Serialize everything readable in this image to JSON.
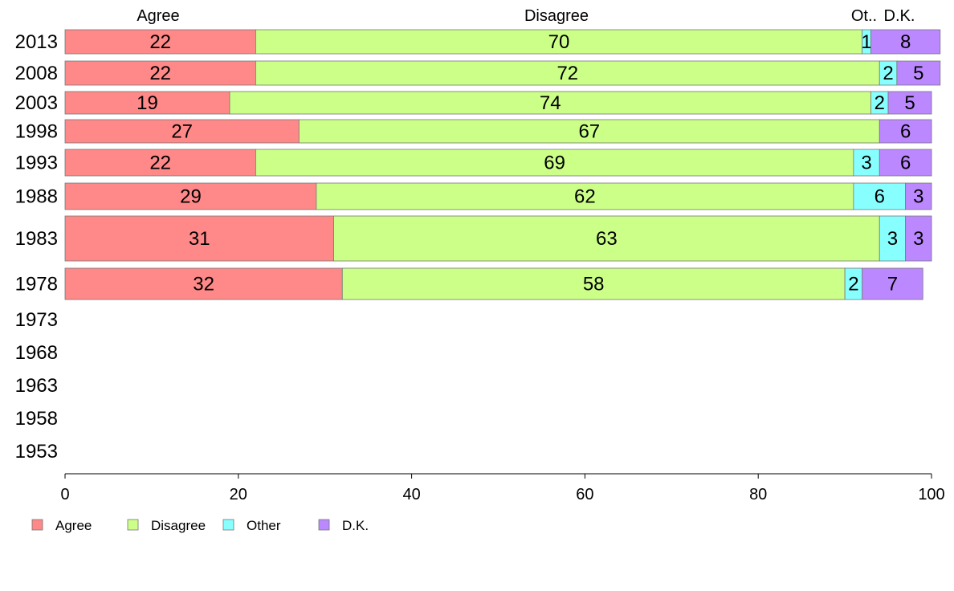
{
  "chart_data": {
    "type": "bar",
    "orientation": "horizontal",
    "stacked": true,
    "categories": [
      "2013",
      "2008",
      "2003",
      "1998",
      "1993",
      "1988",
      "1983",
      "1978",
      "1973",
      "1968",
      "1963",
      "1958",
      "1953"
    ],
    "series": [
      {
        "name": "Agree",
        "color": "#FF8888",
        "values": [
          22,
          22,
          19,
          27,
          22,
          29,
          31,
          32,
          null,
          null,
          null,
          null,
          null
        ],
        "labels": [
          "22",
          "22",
          "19",
          "27",
          "22",
          "29",
          "31",
          "32",
          "",
          "",
          "",
          "",
          ""
        ]
      },
      {
        "name": "Disagree",
        "color": "#CCFF88",
        "values": [
          70,
          72,
          74,
          67,
          69,
          62,
          63,
          58,
          null,
          null,
          null,
          null,
          null
        ],
        "labels": [
          "70",
          "72",
          "74",
          "67",
          "69",
          "62",
          "63",
          "58",
          "",
          "",
          "",
          "",
          ""
        ]
      },
      {
        "name": "Other",
        "color": "#88FFFF",
        "values": [
          1,
          2,
          2,
          0,
          3,
          6,
          3,
          2,
          null,
          null,
          null,
          null,
          null
        ],
        "labels": [
          "1",
          "2",
          "2",
          "",
          "3",
          "6",
          "3",
          "2",
          "",
          "",
          "",
          "",
          ""
        ]
      },
      {
        "name": "D.K.",
        "color": "#BB88FF",
        "values": [
          8,
          5,
          5,
          6,
          6,
          3,
          3,
          7,
          null,
          null,
          null,
          null,
          null
        ],
        "labels": [
          "8",
          "5",
          "5",
          "6",
          "6",
          "3",
          "3",
          "7",
          "",
          "",
          "",
          "",
          ""
        ]
      }
    ],
    "column_headers": [
      "Agree",
      "Disagree",
      "Ot..",
      "D.K."
    ],
    "xlim": [
      0,
      100
    ],
    "xticks": [
      0,
      20,
      40,
      60,
      80,
      100
    ],
    "xtick_labels": [
      "0",
      "20",
      "40",
      "60",
      "80",
      "100"
    ],
    "grid": false,
    "legend_position": "bottom-left"
  }
}
